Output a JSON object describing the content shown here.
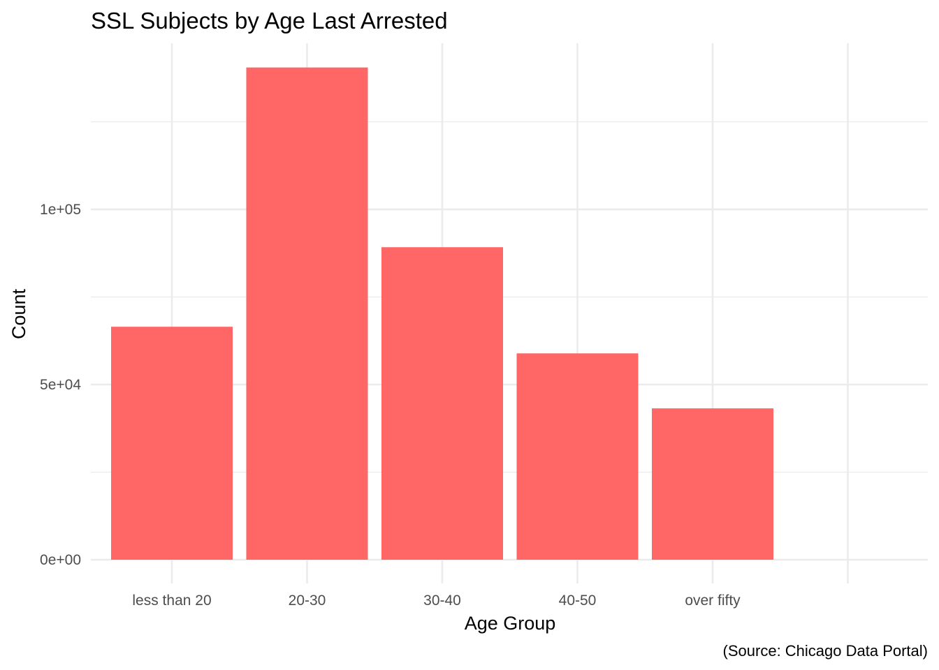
{
  "chart_data": {
    "type": "bar",
    "title": "SSL Subjects by Age Last Arrested",
    "xlabel": "Age Group",
    "ylabel": "Count",
    "caption": "(Source: Chicago Data Portal)",
    "categories": [
      "less than 20",
      "20-30",
      "30-40",
      "40-50",
      "over fifty",
      ""
    ],
    "values": [
      66500,
      140500,
      89200,
      58900,
      43200,
      null
    ],
    "ylim": [
      0,
      147000
    ],
    "yticks": [
      0,
      50000,
      100000
    ],
    "ytick_labels": [
      "0e+00",
      "5e+04",
      "1e+05"
    ],
    "minor_yticks": [
      25000,
      75000,
      125000
    ],
    "grid": true,
    "legend": "none",
    "bar_color": "#ff6666",
    "grid_color": "#ebebeb"
  }
}
